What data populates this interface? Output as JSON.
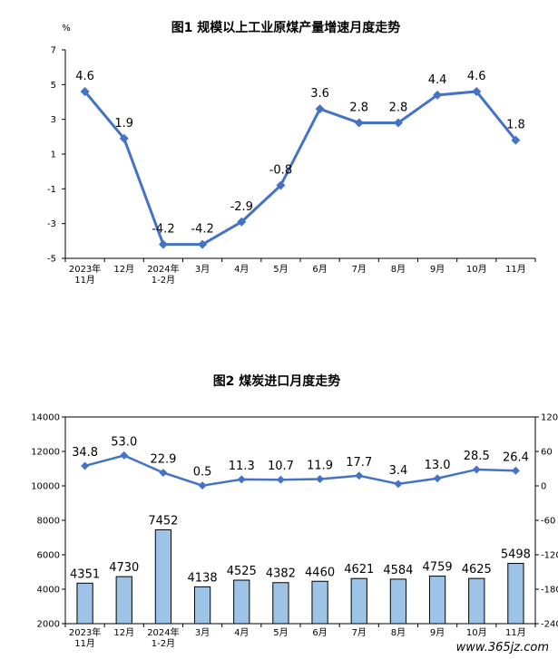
{
  "chart_data": [
    {
      "type": "line",
      "title": "图1  规模以上工业原煤产量增速月度走势",
      "unit_label": "%",
      "categories": [
        [
          "2023年",
          "11月"
        ],
        [
          "12月"
        ],
        [
          "2024年",
          "1-2月"
        ],
        [
          "3月"
        ],
        [
          "4月"
        ],
        [
          "5月"
        ],
        [
          "6月"
        ],
        [
          "7月"
        ],
        [
          "8月"
        ],
        [
          "9月"
        ],
        [
          "10月"
        ],
        [
          "11月"
        ]
      ],
      "y_ticks": [
        "7",
        "5",
        "3",
        "1",
        "-1",
        "-3",
        "-5"
      ],
      "ylim": [
        -5,
        7
      ],
      "grid": false,
      "series": [
        {
          "values": [
            4.6,
            1.9,
            -4.2,
            -4.2,
            -2.9,
            -0.8,
            3.6,
            2.8,
            2.8,
            4.4,
            4.6,
            1.8
          ],
          "labels": [
            "4.6",
            "1.9",
            "-4.2",
            "-4.2",
            "-2.9",
            "-0.8",
            "3.6",
            "2.8",
            "2.8",
            "4.4",
            "4.6",
            "1.8"
          ],
          "color": "#4472C4"
        }
      ]
    },
    {
      "type": "bar",
      "title": "图2  煤炭进口月度走势",
      "categories": [
        [
          "2023年",
          "11月"
        ],
        [
          "12月"
        ],
        [
          "2024年",
          "1-2月"
        ],
        [
          "3月"
        ],
        [
          "4月"
        ],
        [
          "5月"
        ],
        [
          "6月"
        ],
        [
          "7月"
        ],
        [
          "8月"
        ],
        [
          "9月"
        ],
        [
          "10月"
        ],
        [
          "11月"
        ]
      ],
      "y_left_ticks": [
        "14000",
        "12000",
        "10000",
        "8000",
        "6000",
        "4000",
        "2000"
      ],
      "y_right_ticks": [
        "120",
        "60",
        "0",
        "-60",
        "-120",
        "-180",
        "-240"
      ],
      "ylim_left": [
        2000,
        14000
      ],
      "ylim_right": [
        -240,
        120
      ],
      "grid": false,
      "series": [
        {
          "type": "bar",
          "axis": "left",
          "values": [
            4351,
            4730,
            7452,
            4138,
            4525,
            4382,
            4460,
            4621,
            4584,
            4759,
            4625,
            5498
          ],
          "labels": [
            "4351",
            "4730",
            "7452",
            "4138",
            "4525",
            "4382",
            "4460",
            "4621",
            "4584",
            "4759",
            "4625",
            "5498"
          ],
          "color": "#9DC3E6"
        },
        {
          "type": "line",
          "axis": "right",
          "values": [
            34.8,
            53.0,
            22.9,
            0.5,
            11.3,
            10.7,
            11.9,
            17.7,
            3.4,
            13.0,
            28.5,
            26.4
          ],
          "labels": [
            "34.8",
            "53.0",
            "22.9",
            "0.5",
            "11.3",
            "10.7",
            "11.9",
            "17.7",
            "3.4",
            "13.0",
            "28.5",
            "26.4"
          ],
          "color": "#4472C4"
        }
      ]
    }
  ],
  "watermark": "www.365jz.com"
}
